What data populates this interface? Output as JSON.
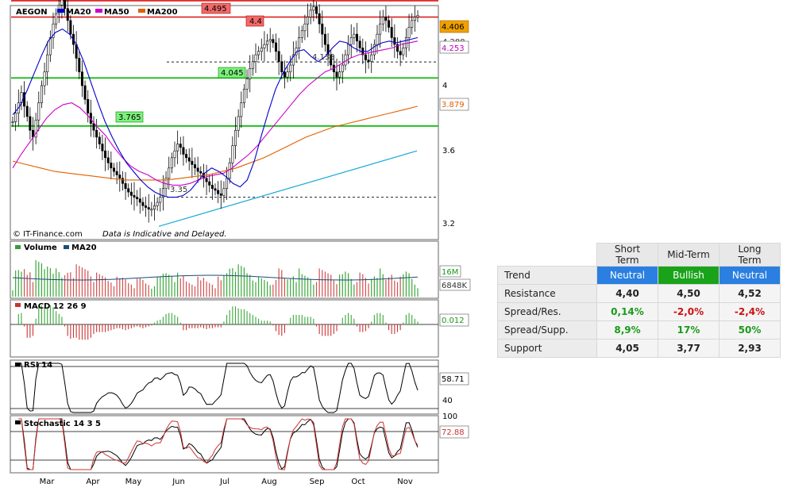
{
  "chart_data": {
    "type": "candlestick",
    "symbol": "AEGON",
    "legend": [
      "MA20",
      "MA50",
      "MA200"
    ],
    "legend_colors": {
      "MA20": "#0000cc",
      "MA50": "#cc00cc",
      "MA200": "#e06000"
    },
    "months": [
      "Mar",
      "Apr",
      "May",
      "Jun",
      "Jul",
      "Aug",
      "Sep",
      "Oct",
      "Nov"
    ],
    "y_ticks": [
      "4",
      "3.6",
      "3.2"
    ],
    "price_levels": {
      "last": "4.406",
      "ma20": "4.253",
      "ma50_hidden": "4.288",
      "ma200": "3.879"
    },
    "resistance_lines": [
      {
        "label": "4.495",
        "value": 4.495
      },
      {
        "label": "4.4",
        "value": 4.4
      }
    ],
    "support_lines": [
      {
        "label": "4.045",
        "value": 4.045
      },
      {
        "label": "3.765",
        "value": 3.765
      }
    ],
    "dashed_lines": [
      {
        "label": "4.138",
        "value": 4.138
      },
      {
        "label": "3.35",
        "value": 3.35
      }
    ],
    "close_series": [
      3.79,
      3.84,
      3.9,
      3.96,
      3.88,
      3.82,
      3.74,
      3.7,
      3.8,
      3.9,
      4.0,
      4.08,
      4.18,
      4.28,
      4.36,
      4.42,
      4.47,
      4.5,
      4.45,
      4.38,
      4.3,
      4.24,
      4.16,
      4.08,
      4.0,
      3.92,
      3.84,
      3.78,
      3.74,
      3.7,
      3.66,
      3.62,
      3.58,
      3.55,
      3.52,
      3.5,
      3.48,
      3.46,
      3.43,
      3.4,
      3.38,
      3.36,
      3.35,
      3.34,
      3.32,
      3.3,
      3.29,
      3.28,
      3.28,
      3.3,
      3.32,
      3.35,
      3.4,
      3.46,
      3.52,
      3.58,
      3.62,
      3.66,
      3.64,
      3.6,
      3.58,
      3.56,
      3.54,
      3.52,
      3.5,
      3.49,
      3.46,
      3.44,
      3.42,
      3.4,
      3.39,
      3.37,
      3.36,
      3.4,
      3.46,
      3.55,
      3.65,
      3.74,
      3.82,
      3.9,
      3.98,
      4.04,
      4.1,
      4.14,
      4.18,
      4.2,
      4.22,
      4.24,
      4.26,
      4.27,
      4.25,
      4.2,
      4.14,
      4.08,
      4.05,
      4.08,
      4.12,
      4.18,
      4.22,
      4.28,
      4.32,
      4.36,
      4.4,
      4.44,
      4.46,
      4.42,
      4.36,
      4.3,
      4.24,
      4.18,
      4.12,
      4.08,
      4.05,
      4.08,
      4.12,
      4.18,
      4.24,
      4.28,
      4.3,
      4.26,
      4.22,
      4.18,
      4.15,
      4.14,
      4.18,
      4.24,
      4.3,
      4.36,
      4.4,
      4.38,
      4.34,
      4.28,
      4.24,
      4.2,
      4.18,
      4.22,
      4.28,
      4.34,
      4.38,
      4.4,
      4.41
    ],
    "ma20_series": [
      3.83,
      3.88,
      3.97,
      4.07,
      4.17,
      4.26,
      4.31,
      4.33,
      4.3,
      4.24,
      4.14,
      4.02,
      3.9,
      3.79,
      3.7,
      3.62,
      3.55,
      3.5,
      3.45,
      3.41,
      3.38,
      3.36,
      3.35,
      3.35,
      3.36,
      3.39,
      3.44,
      3.49,
      3.52,
      3.5,
      3.47,
      3.43,
      3.41,
      3.45,
      3.56,
      3.71,
      3.85,
      3.98,
      4.07,
      4.14,
      4.2,
      4.21,
      4.17,
      4.14,
      4.17,
      4.22,
      4.26,
      4.25,
      4.22,
      4.2,
      4.2,
      4.23,
      4.25,
      4.26,
      4.25,
      4.26,
      4.27,
      4.28
    ],
    "ma50_series": [
      3.52,
      3.6,
      3.67,
      3.74,
      3.81,
      3.86,
      3.89,
      3.9,
      3.87,
      3.82,
      3.76,
      3.71,
      3.64,
      3.58,
      3.53,
      3.5,
      3.48,
      3.45,
      3.43,
      3.42,
      3.42,
      3.43,
      3.45,
      3.47,
      3.48,
      3.49,
      3.52,
      3.56,
      3.6,
      3.65,
      3.71,
      3.77,
      3.83,
      3.89,
      3.95,
      4.0,
      4.04,
      4.08,
      4.1,
      4.13,
      4.16,
      4.18,
      4.19,
      4.2,
      4.21,
      4.22,
      4.24,
      4.25,
      4.26
    ],
    "ma200_series": [
      3.56,
      3.54,
      3.52,
      3.5,
      3.49,
      3.48,
      3.47,
      3.46,
      3.45,
      3.45,
      3.45,
      3.45,
      3.46,
      3.47,
      3.48,
      3.5,
      3.52,
      3.55,
      3.58,
      3.62,
      3.66,
      3.7,
      3.73,
      3.76,
      3.78,
      3.8,
      3.82,
      3.84,
      3.86,
      3.88
    ],
    "trendline": {
      "from": 3.18,
      "to": 3.62
    },
    "volume": {
      "label": "Volume",
      "ma_label": "MA20",
      "levels": [
        "16M",
        "6848K"
      ]
    },
    "macd": {
      "label": "MACD 12 26 9",
      "value": "0.012"
    },
    "rsi": {
      "label": "RSI 14",
      "value": "58.71",
      "low_tick": "40"
    },
    "stochastic": {
      "label": "Stochastic 14 3 5",
      "value": "72.88",
      "top_tick": "100"
    },
    "watermark": "© IT-Finance.com",
    "disclaimer": "Data is Indicative and Delayed."
  },
  "trend_table": {
    "headers": [
      "Short Term",
      "Mid-Term",
      "Long Term"
    ],
    "rows": [
      {
        "label": "Trend",
        "values": [
          "Neutral",
          "Bullish",
          "Neutral"
        ]
      },
      {
        "label": "Resistance",
        "values": [
          "4,40",
          "4,50",
          "4,52"
        ]
      },
      {
        "label": "Spread/Res.",
        "values": [
          "0,14%",
          "-2,0%",
          "-2,4%"
        ]
      },
      {
        "label": "Spread/Supp.",
        "values": [
          "8,9%",
          "17%",
          "50%"
        ]
      },
      {
        "label": "Support",
        "values": [
          "4,05",
          "3,77",
          "2,93"
        ]
      }
    ]
  }
}
